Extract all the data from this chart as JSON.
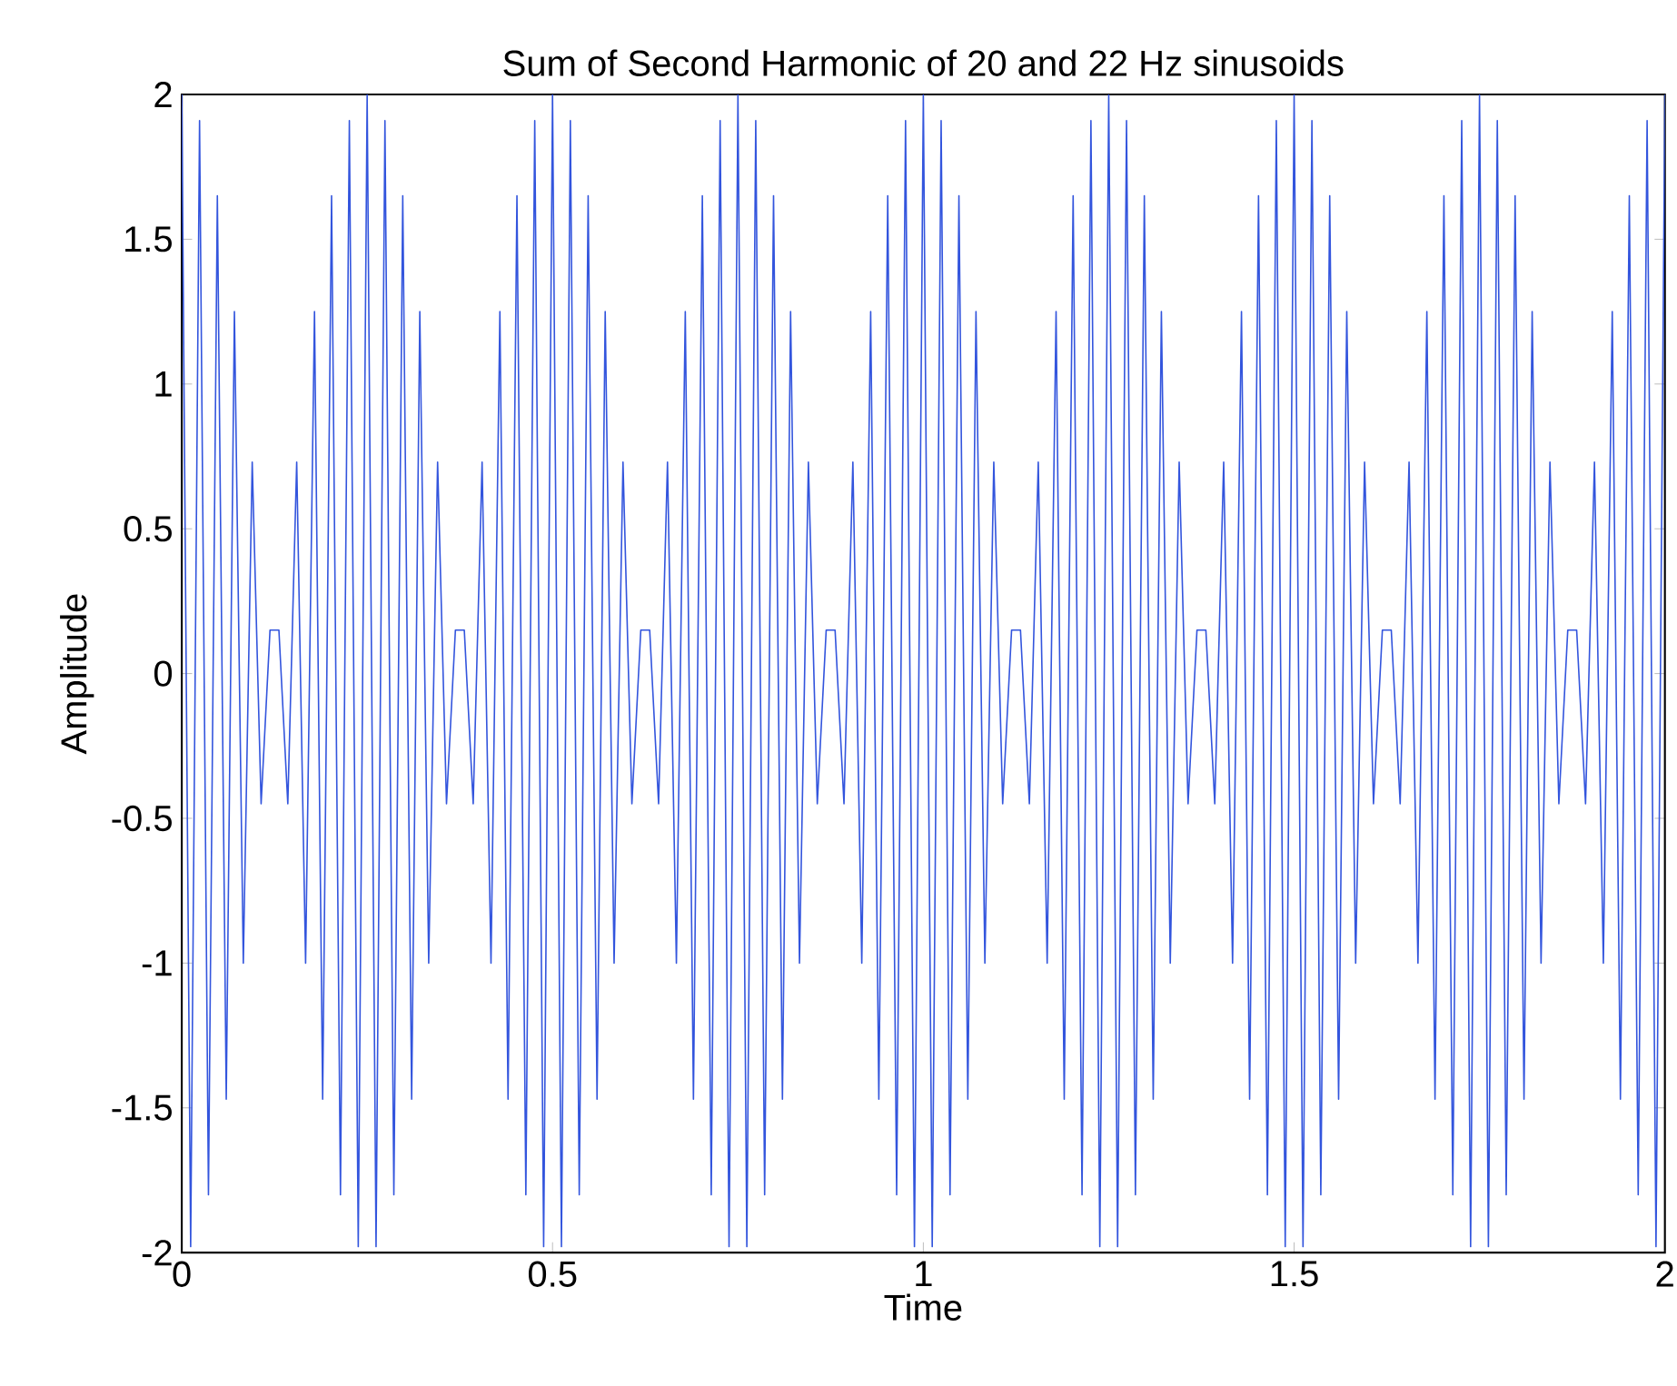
{
  "chart_data": {
    "type": "line",
    "title": "Sum of Second Harmonic of 20 and 22 Hz sinusoids",
    "xlabel": "Time",
    "ylabel": "Amplitude",
    "xlim": [
      0,
      2
    ],
    "xticks": [
      0,
      0.5,
      1,
      1.5,
      2
    ],
    "ylim": [
      -2,
      2
    ],
    "yticks": [
      -2,
      -1.5,
      -1,
      -0.5,
      0,
      0.5,
      1,
      1.5,
      2
    ],
    "series": [
      {
        "color": "#3355dd",
        "x": [
          0,
          0.012,
          0.024,
          0.036,
          0.048,
          0.06,
          0.071,
          0.083,
          0.095,
          0.107,
          0.119,
          0.131,
          0.143,
          0.155,
          0.167,
          0.179,
          0.19,
          0.202,
          0.214,
          0.226,
          0.238,
          0.25,
          0.262,
          0.274,
          0.286,
          0.298,
          0.31,
          0.321,
          0.333,
          0.345,
          0.357,
          0.369,
          0.381,
          0.393,
          0.405,
          0.417,
          0.429,
          0.44,
          0.452,
          0.464,
          0.476,
          0.488,
          0.5,
          0.512,
          0.524,
          0.536,
          0.548,
          0.56,
          0.571,
          0.583,
          0.595,
          0.607,
          0.619,
          0.631,
          0.643,
          0.655,
          0.667,
          0.679,
          0.69,
          0.702,
          0.714,
          0.726,
          0.738,
          0.75,
          0.762,
          0.774,
          0.786,
          0.798,
          0.81,
          0.821,
          0.833,
          0.845,
          0.857,
          0.869,
          0.881,
          0.893,
          0.905,
          0.917,
          0.929,
          0.94,
          0.952,
          0.964,
          0.976,
          0.988,
          1,
          1.012,
          1.024,
          1.036,
          1.048,
          1.06,
          1.071,
          1.083,
          1.095,
          1.107,
          1.119,
          1.131,
          1.143,
          1.155,
          1.167,
          1.179,
          1.19,
          1.202,
          1.214,
          1.226,
          1.238,
          1.25,
          1.262,
          1.274,
          1.286,
          1.298,
          1.31,
          1.321,
          1.333,
          1.345,
          1.357,
          1.369,
          1.381,
          1.393,
          1.405,
          1.417,
          1.429,
          1.44,
          1.452,
          1.464,
          1.476,
          1.488,
          1.5,
          1.512,
          1.524,
          1.536,
          1.548,
          1.56,
          1.571,
          1.583,
          1.595,
          1.607,
          1.619,
          1.631,
          1.643,
          1.655,
          1.667,
          1.679,
          1.69,
          1.702,
          1.714,
          1.726,
          1.738,
          1.75,
          1.762,
          1.774,
          1.786,
          1.798,
          1.81,
          1.821,
          1.833,
          1.845,
          1.857,
          1.869,
          1.881,
          1.893,
          1.905,
          1.917,
          1.929,
          1.94,
          1.952,
          1.964,
          1.976,
          1.988,
          2
        ],
        "values": [
          2,
          -1.98,
          1.91,
          -1.8,
          1.65,
          -1.47,
          1.25,
          -1,
          0.73,
          -0.45,
          0.15,
          0.15,
          -0.45,
          0.73,
          -1,
          1.25,
          -1.47,
          1.65,
          -1.8,
          1.91,
          -1.98,
          2,
          -1.98,
          1.91,
          -1.8,
          1.65,
          -1.47,
          1.25,
          -1,
          0.73,
          -0.45,
          0.15,
          0.15,
          -0.45,
          0.73,
          -1,
          1.25,
          -1.47,
          1.65,
          -1.8,
          1.91,
          -1.98,
          2,
          -1.98,
          1.91,
          -1.8,
          1.65,
          -1.47,
          1.25,
          -1,
          0.73,
          -0.45,
          0.15,
          0.15,
          -0.45,
          0.73,
          -1,
          1.25,
          -1.47,
          1.65,
          -1.8,
          1.91,
          -1.98,
          2,
          -1.98,
          1.91,
          -1.8,
          1.65,
          -1.47,
          1.25,
          -1,
          0.73,
          -0.45,
          0.15,
          0.15,
          -0.45,
          0.73,
          -1,
          1.25,
          -1.47,
          1.65,
          -1.8,
          1.91,
          -1.98,
          2,
          -1.98,
          1.91,
          -1.8,
          1.65,
          -1.47,
          1.25,
          -1,
          0.73,
          -0.45,
          0.15,
          0.15,
          -0.45,
          0.73,
          -1,
          1.25,
          -1.47,
          1.65,
          -1.8,
          1.91,
          -1.98,
          2,
          -1.98,
          1.91,
          -1.8,
          1.65,
          -1.47,
          1.25,
          -1,
          0.73,
          -0.45,
          0.15,
          0.15,
          -0.45,
          0.73,
          -1,
          1.25,
          -1.47,
          1.65,
          -1.8,
          1.91,
          -1.98,
          2,
          -1.98,
          1.91,
          -1.8,
          1.65,
          -1.47,
          1.25,
          -1,
          0.73,
          -0.45,
          0.15,
          0.15,
          -0.45,
          0.73,
          -1,
          1.25,
          -1.47,
          1.65,
          -1.8,
          1.91,
          -1.98,
          2,
          -1.98,
          1.91,
          -1.8,
          1.65,
          -1.47,
          1.25,
          -1,
          0.73,
          -0.45,
          0.15,
          0.15,
          -0.45,
          0.73,
          -1,
          1.25,
          -1.47,
          1.65,
          -1.8,
          1.91,
          -1.98,
          2
        ]
      }
    ]
  }
}
